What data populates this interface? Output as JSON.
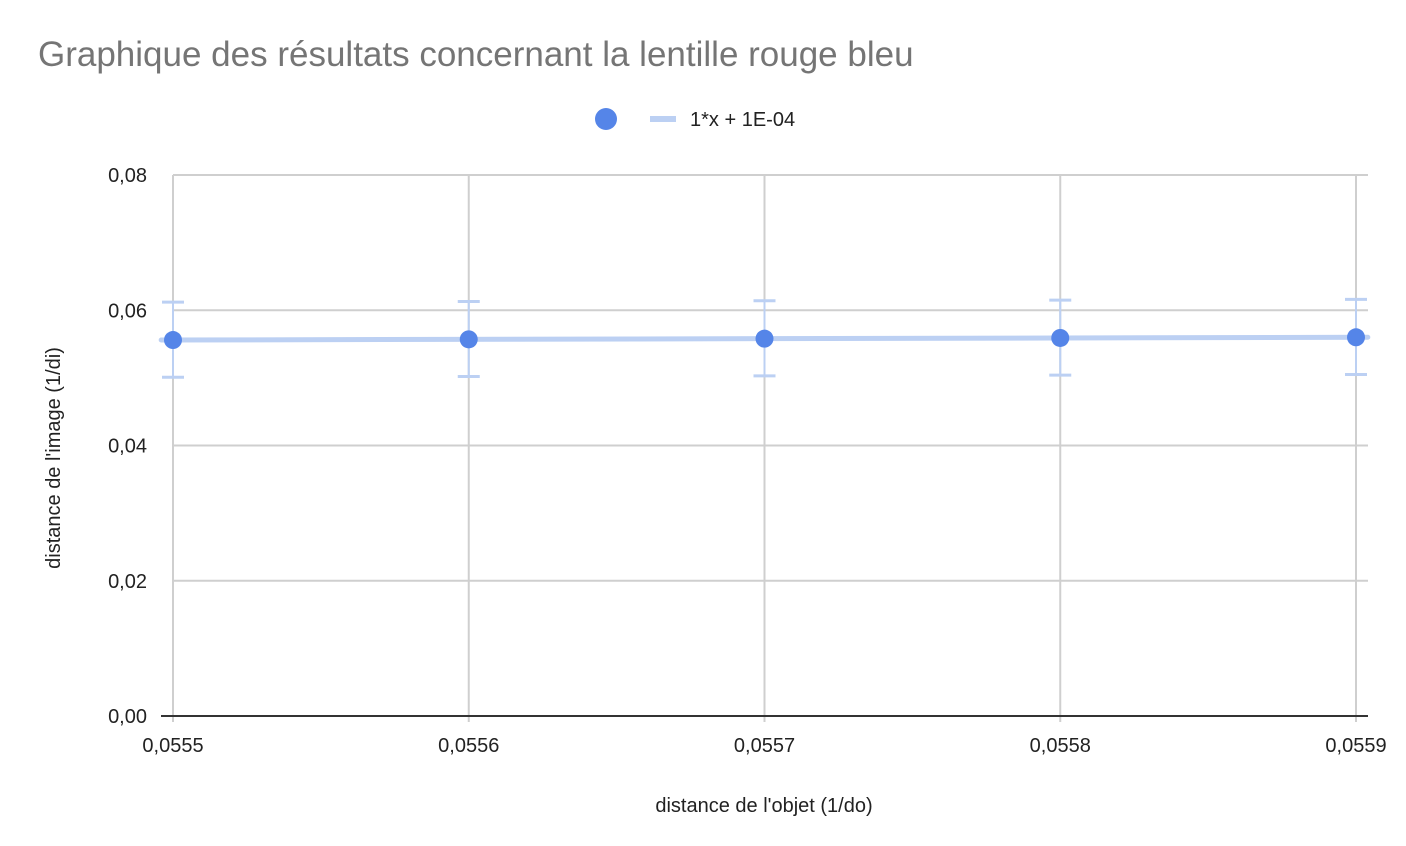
{
  "chart_data": {
    "type": "scatter",
    "title": "Graphique des résultats concernant la lentille rouge bleu",
    "xlabel": "distance de l'objet (1/do)",
    "ylabel": "distance de l'image (1/di)",
    "xlim": [
      0.0555,
      0.0559
    ],
    "ylim": [
      0.0,
      0.08
    ],
    "x_ticks": [
      "0,0555",
      "0,0556",
      "0,0557",
      "0,0558",
      "0,0559"
    ],
    "x_tick_values": [
      0.0555,
      0.0556,
      0.0557,
      0.0558,
      0.0559
    ],
    "y_ticks": [
      "0,00",
      "0,02",
      "0,04",
      "0,06",
      "0,08"
    ],
    "y_tick_values": [
      0.0,
      0.02,
      0.04,
      0.06,
      0.08
    ],
    "grid": true,
    "legend": {
      "placement": "top-center",
      "trendline_label": "1*x + 1E-04"
    },
    "series": [
      {
        "x": [
          0.0555,
          0.0556,
          0.0557,
          0.0558,
          0.0559
        ],
        "y": [
          0.0556,
          0.0557,
          0.0558,
          0.0559,
          0.056
        ],
        "error_low": [
          0.0501,
          0.0502,
          0.0503,
          0.0504,
          0.0505
        ],
        "error_high": [
          0.0612,
          0.0613,
          0.0614,
          0.0615,
          0.0616
        ],
        "color": "#5585e8"
      }
    ],
    "trendline": {
      "slope": 1,
      "intercept": 0.0001,
      "color": "#bcd0f3"
    },
    "colors": {
      "points": "#5585e8",
      "trendline": "#bcd0f3",
      "error_bars": "#bcd0f3",
      "grid": "#cfcfcf",
      "axis": "#333333",
      "title": "#757575"
    }
  }
}
